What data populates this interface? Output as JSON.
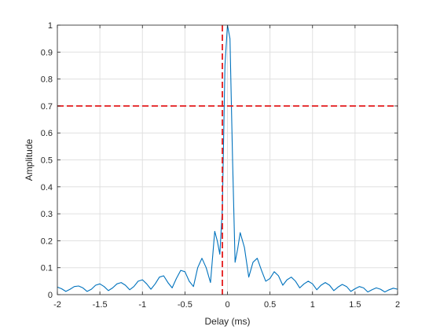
{
  "chart_data": {
    "type": "line",
    "title": "",
    "xlabel": "Delay (ms)",
    "ylabel": "Amplitude",
    "xlim": [
      -2,
      2
    ],
    "ylim": [
      0,
      1
    ],
    "xticks": [
      -2,
      -1.5,
      -1,
      -0.5,
      0,
      0.5,
      1,
      1.5,
      2
    ],
    "xtick_labels": [
      "-2",
      "-1.5",
      "-1",
      "-0.5",
      "0",
      "0.5",
      "1",
      "1.5",
      "2"
    ],
    "yticks": [
      0,
      0.1,
      0.2,
      0.3,
      0.4,
      0.5,
      0.6,
      0.7,
      0.8,
      0.9,
      1
    ],
    "ytick_labels": [
      "0",
      "0.1",
      "0.2",
      "0.3",
      "0.4",
      "0.5",
      "0.6",
      "0.7",
      "0.8",
      "0.9",
      "1"
    ],
    "grid": true,
    "line_color": "#0072bd",
    "reference_color": "#e31a1c",
    "reference_lines": {
      "horizontal_y": 0.7,
      "vertical_x": -0.06
    },
    "series": [
      {
        "x": [
          -2,
          -1.95,
          -1.9,
          -1.85,
          -1.8,
          -1.75,
          -1.7,
          -1.65,
          -1.6,
          -1.55,
          -1.5,
          -1.45,
          -1.4,
          -1.35,
          -1.3,
          -1.25,
          -1.2,
          -1.15,
          -1.1,
          -1.05,
          -1.0,
          -0.95,
          -0.9,
          -0.85,
          -0.8,
          -0.75,
          -0.7,
          -0.65,
          -0.6,
          -0.55,
          -0.5,
          -0.45,
          -0.4,
          -0.35,
          -0.3,
          -0.25,
          -0.2,
          -0.15,
          -0.12,
          -0.09,
          -0.06,
          -0.03,
          0,
          0.03,
          0.06,
          0.09,
          0.12,
          0.15,
          0.2,
          0.25,
          0.3,
          0.35,
          0.4,
          0.45,
          0.5,
          0.55,
          0.6,
          0.65,
          0.7,
          0.75,
          0.8,
          0.85,
          0.9,
          0.95,
          1.0,
          1.05,
          1.1,
          1.15,
          1.2,
          1.25,
          1.3,
          1.35,
          1.4,
          1.45,
          1.5,
          1.55,
          1.6,
          1.65,
          1.7,
          1.75,
          1.8,
          1.85,
          1.9,
          1.95,
          2
        ],
        "y": [
          0.028,
          0.022,
          0.012,
          0.02,
          0.03,
          0.032,
          0.025,
          0.012,
          0.02,
          0.035,
          0.04,
          0.03,
          0.015,
          0.025,
          0.04,
          0.045,
          0.035,
          0.018,
          0.03,
          0.05,
          0.055,
          0.04,
          0.02,
          0.04,
          0.065,
          0.07,
          0.045,
          0.025,
          0.06,
          0.09,
          0.085,
          0.05,
          0.03,
          0.1,
          0.135,
          0.1,
          0.045,
          0.235,
          0.2,
          0.15,
          0.32,
          0.85,
          1.0,
          0.95,
          0.5,
          0.12,
          0.17,
          0.23,
          0.175,
          0.065,
          0.12,
          0.135,
          0.09,
          0.05,
          0.06,
          0.085,
          0.07,
          0.035,
          0.055,
          0.065,
          0.05,
          0.025,
          0.04,
          0.05,
          0.04,
          0.018,
          0.035,
          0.045,
          0.035,
          0.015,
          0.028,
          0.038,
          0.03,
          0.012,
          0.022,
          0.03,
          0.025,
          0.01,
          0.018,
          0.025,
          0.02,
          0.01,
          0.018,
          0.024,
          0.02
        ]
      }
    ]
  }
}
